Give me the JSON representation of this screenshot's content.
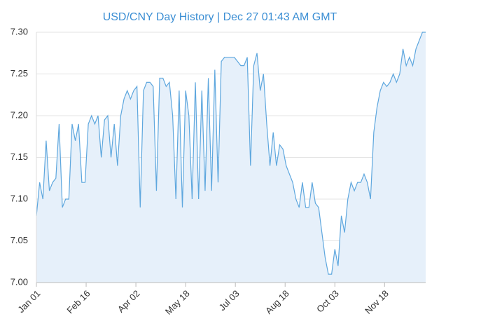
{
  "chart_data": {
    "type": "area",
    "title": "USD/CNY  Day History | Dec 27 01:43 AM GMT",
    "x": [
      0,
      3,
      6,
      9,
      12,
      15,
      18,
      21,
      24,
      27,
      30,
      33,
      36,
      39,
      42,
      45,
      48,
      51,
      54,
      57,
      60,
      63,
      66,
      69,
      72,
      75,
      78,
      81,
      84,
      87,
      90,
      93,
      96,
      99,
      102,
      105,
      108,
      111,
      114,
      117,
      120,
      123,
      126,
      129,
      132,
      135,
      138,
      141,
      144,
      147,
      150,
      153,
      156,
      159,
      162,
      165,
      168,
      171,
      174,
      177,
      180,
      183,
      186,
      189,
      192,
      195,
      198,
      201,
      204,
      207,
      210,
      213,
      216,
      219,
      222,
      225,
      228,
      231,
      234,
      237,
      240,
      243,
      246,
      249,
      252,
      255,
      258,
      261,
      264,
      267,
      270,
      273,
      276,
      279,
      282,
      285,
      288,
      291,
      294,
      297,
      300,
      303,
      306,
      309,
      312,
      315,
      318,
      321,
      324,
      327,
      330,
      333,
      336,
      339,
      342,
      345,
      348,
      351,
      354,
      357,
      360
    ],
    "values": [
      7.08,
      7.12,
      7.1,
      7.17,
      7.11,
      7.12,
      7.125,
      7.19,
      7.09,
      7.1,
      7.1,
      7.19,
      7.17,
      7.19,
      7.12,
      7.12,
      7.19,
      7.2,
      7.19,
      7.2,
      7.15,
      7.195,
      7.2,
      7.15,
      7.19,
      7.14,
      7.2,
      7.22,
      7.23,
      7.22,
      7.23,
      7.235,
      7.09,
      7.23,
      7.24,
      7.24,
      7.235,
      7.11,
      7.245,
      7.245,
      7.235,
      7.24,
      7.2,
      7.1,
      7.23,
      7.09,
      7.23,
      7.2,
      7.1,
      7.24,
      7.1,
      7.23,
      7.11,
      7.245,
      7.11,
      7.255,
      7.12,
      7.265,
      7.27,
      7.27,
      7.27,
      7.27,
      7.265,
      7.26,
      7.26,
      7.27,
      7.14,
      7.26,
      7.275,
      7.23,
      7.25,
      7.19,
      7.14,
      7.18,
      7.14,
      7.165,
      7.16,
      7.14,
      7.13,
      7.12,
      7.1,
      7.09,
      7.12,
      7.09,
      7.09,
      7.12,
      7.095,
      7.09,
      7.06,
      7.03,
      7.01,
      7.01,
      7.04,
      7.02,
      7.08,
      7.06,
      7.1,
      7.12,
      7.11,
      7.12,
      7.12,
      7.13,
      7.12,
      7.1,
      7.18,
      7.21,
      7.23,
      7.24,
      7.235,
      7.24,
      7.25,
      7.24,
      7.25,
      7.28,
      7.26,
      7.27,
      7.26,
      7.28,
      7.29,
      7.3,
      7.3
    ],
    "color": "#5ea7de",
    "fill": "#e6f0fa",
    "xlim": [
      0,
      360
    ],
    "xticks": [
      {
        "value": 0,
        "label": "Jan 01"
      },
      {
        "value": 46,
        "label": "Feb 16"
      },
      {
        "value": 92,
        "label": "Apr 02"
      },
      {
        "value": 138,
        "label": "May 18"
      },
      {
        "value": 184,
        "label": "Jul 03"
      },
      {
        "value": 230,
        "label": "Aug 18"
      },
      {
        "value": 276,
        "label": "Oct 03"
      },
      {
        "value": 322,
        "label": "Nov 18"
      }
    ],
    "ylim": [
      7.0,
      7.3
    ],
    "yticks": [
      {
        "value": 7.0,
        "label": "7.00"
      },
      7.05,
      {
        "value": 7.1,
        "label": "7.10"
      },
      7.15,
      {
        "value": 7.2,
        "label": "7.20"
      },
      7.25,
      {
        "value": 7.3,
        "label": "7.30"
      }
    ],
    "grid": true
  }
}
